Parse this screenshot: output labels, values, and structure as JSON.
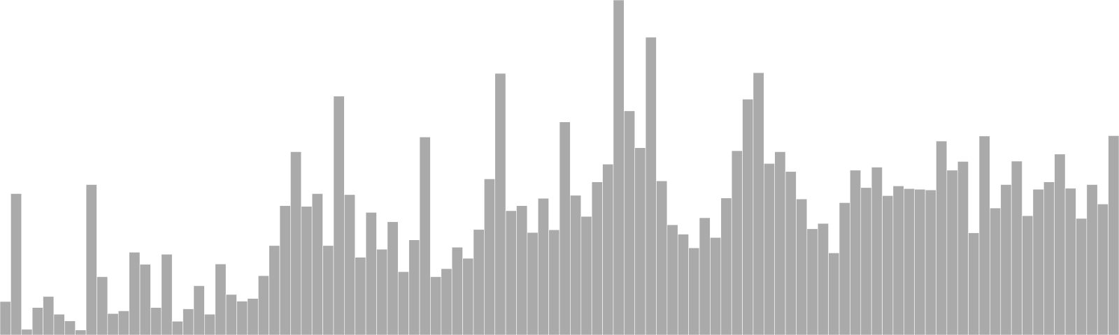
{
  "chart_data": {
    "type": "bar",
    "title": "",
    "xlabel": "",
    "ylabel": "",
    "grid": false,
    "bar_color": "#aaaaaa",
    "bar_edge_color": "#ffffff",
    "background": "#ffffff",
    "ylim": [
      0,
      100
    ],
    "values": [
      10,
      42.2,
      1.7,
      8.2,
      11.5,
      6.2,
      4.2,
      1.5,
      44.9,
      17.4,
      6.4,
      7.2,
      24.7,
      21.1,
      8.2,
      24.1,
      4.1,
      7.8,
      14.7,
      6.2,
      21.2,
      12.1,
      10.1,
      10.9,
      17.7,
      26.7,
      38.6,
      54.7,
      38.4,
      42.2,
      26.7,
      71.3,
      41.9,
      23.2,
      36.6,
      25.6,
      33.8,
      18.9,
      28.4,
      59.1,
      17.4,
      19.8,
      26.2,
      22.9,
      31.5,
      46.6,
      78.1,
      37.1,
      38.6,
      30.6,
      40.8,
      31.4,
      63.6,
      41.7,
      35.4,
      45.7,
      51,
      100,
      66.9,
      55.9,
      88.9,
      46,
      32.9,
      30.1,
      26,
      35,
      29.1,
      40.9,
      55,
      70.4,
      78.3,
      51.2,
      54.7,
      48.8,
      40.6,
      31.7,
      33.3,
      24.5,
      39.5,
      49.2,
      44,
      50.1,
      41.6,
      44.5,
      43.7,
      43.5,
      43.3,
      57.9,
      49.2,
      51.8,
      30.5,
      59.4,
      37.9,
      44.9,
      51.9,
      35.6,
      43.5,
      45.7,
      54,
      43.8,
      34.8,
      44.9,
      39.1,
      59.5
    ]
  }
}
